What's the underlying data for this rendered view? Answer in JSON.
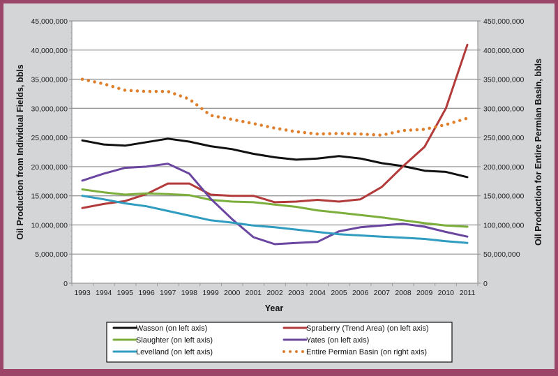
{
  "chart_data": {
    "type": "line",
    "title": "",
    "xlabel": "Year",
    "ylabel": "Oil Production from Individual Fields, bbls",
    "y2label": "Oil Production for Entire Permian Basin, bbls",
    "ylim": [
      0,
      45000000
    ],
    "y2lim": [
      0,
      450000000
    ],
    "grid": true,
    "legend_position": "bottom",
    "x": [
      "1993",
      "1994",
      "1995",
      "1996",
      "1997",
      "1998",
      "1999",
      "2000",
      "2001",
      "2002",
      "2003",
      "2004",
      "2005",
      "2006",
      "2007",
      "2008",
      "2009",
      "2010",
      "2011"
    ],
    "y_ticks": [
      "0",
      "5,000,000",
      "10,000,000",
      "15,000,000",
      "20,000,000",
      "25,000,000",
      "30,000,000",
      "35,000,000",
      "40,000,000",
      "45,000,000"
    ],
    "y2_ticks": [
      "0",
      "50,000,000",
      "100,000,000",
      "150,000,000",
      "200,000,000",
      "250,000,000",
      "300,000,000",
      "350,000,000",
      "400,000,000",
      "450,000,000"
    ],
    "series": [
      {
        "name": "Wasson (on left axis)",
        "axis": "left",
        "color": "#111111",
        "style": "solid",
        "values": [
          24500000,
          23800000,
          23600000,
          24200000,
          24800000,
          24300000,
          23500000,
          23000000,
          22200000,
          21600000,
          21200000,
          21400000,
          21800000,
          21400000,
          20600000,
          20100000,
          19300000,
          19100000,
          18200000
        ]
      },
      {
        "name": "Spraberry (Trend Area) (on left axis)",
        "axis": "left",
        "color": "#b23a3a",
        "style": "solid",
        "values": [
          12900000,
          13600000,
          14100000,
          15300000,
          17100000,
          17100000,
          15200000,
          15000000,
          15000000,
          13900000,
          14000000,
          14300000,
          14000000,
          14400000,
          16500000,
          20100000,
          23400000,
          30000000,
          40900000
        ]
      },
      {
        "name": "Slaughter (on left axis)",
        "axis": "left",
        "color": "#7cae3c",
        "style": "solid",
        "values": [
          16100000,
          15600000,
          15200000,
          15400000,
          15300000,
          15100000,
          14300000,
          14000000,
          13900000,
          13500000,
          13100000,
          12500000,
          12100000,
          11700000,
          11300000,
          10800000,
          10300000,
          9900000,
          9700000
        ]
      },
      {
        "name": "Yates (on left axis)",
        "axis": "left",
        "color": "#6a46a0",
        "style": "solid",
        "values": [
          17600000,
          18800000,
          19800000,
          20000000,
          20500000,
          18800000,
          14500000,
          11000000,
          7900000,
          6700000,
          6900000,
          7100000,
          8900000,
          9600000,
          9900000,
          10200000,
          9700000,
          8800000,
          8000000
        ]
      },
      {
        "name": "Levelland (on left axis)",
        "axis": "left",
        "color": "#2f9cc0",
        "style": "solid",
        "values": [
          15000000,
          14400000,
          13700000,
          13200000,
          12400000,
          11600000,
          10800000,
          10400000,
          9900000,
          9600000,
          9200000,
          8800000,
          8400000,
          8200000,
          8000000,
          7800000,
          7600000,
          7200000,
          6900000
        ]
      },
      {
        "name": "Entire Permian Basin (on right axis)",
        "axis": "right",
        "color": "#e07f2c",
        "style": "dotted",
        "values": [
          350000000,
          342000000,
          331000000,
          329000000,
          329000000,
          316000000,
          288000000,
          281000000,
          274000000,
          266000000,
          260000000,
          256000000,
          257000000,
          256000000,
          254000000,
          262000000,
          264000000,
          272000000,
          283000000
        ]
      }
    ]
  }
}
